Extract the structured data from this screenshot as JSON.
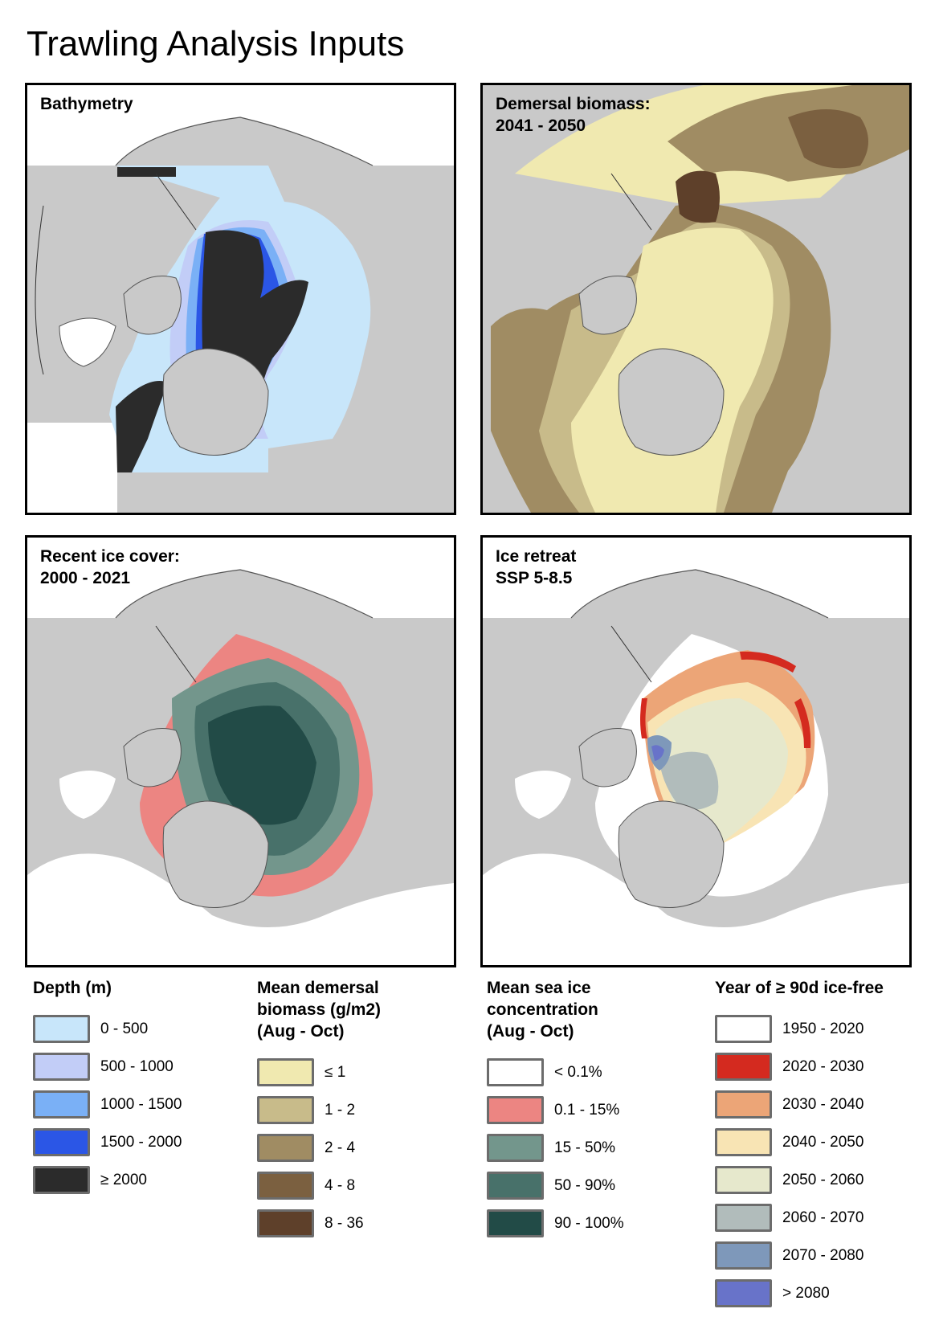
{
  "page": {
    "title": "Trawling Analysis Inputs"
  },
  "colors": {
    "land": "#c9c9c9",
    "coast": "#555555",
    "no_data": "#ffffff"
  },
  "maps": {
    "bathymetry": {
      "title": "Bathymetry"
    },
    "biomass": {
      "title": "Demersal biomass:\n2041 - 2050"
    },
    "ice_cover": {
      "title": "Recent ice cover:\n2000 - 2021"
    },
    "ice_retreat": {
      "title": "Ice retreat\nSSP 5-8.5"
    }
  },
  "legends": {
    "depth": {
      "title": "Depth (m)",
      "items": [
        {
          "label": "0 - 500",
          "color": "#c8e6fa"
        },
        {
          "label": "500 - 1000",
          "color": "#c2cdf7"
        },
        {
          "label": "1000 - 1500",
          "color": "#7ab0f6"
        },
        {
          "label": "1500 - 2000",
          "color": "#2b56e6"
        },
        {
          "label": "≥ 2000",
          "color": "#2b2b2b"
        }
      ]
    },
    "biomass": {
      "title": "Mean demersal\nbiomass (g/m2)\n(Aug - Oct)",
      "items": [
        {
          "label": "≤ 1",
          "color": "#f0e9b0"
        },
        {
          "label": "1 - 2",
          "color": "#c8bb8a"
        },
        {
          "label": "2 - 4",
          "color": "#a08c63"
        },
        {
          "label": "4 - 8",
          "color": "#7b6040"
        },
        {
          "label": "8 - 36",
          "color": "#5e402a"
        }
      ]
    },
    "ice": {
      "title": "Mean sea ice\nconcentration\n(Aug - Oct)",
      "items": [
        {
          "label": "< 0.1%",
          "color": "#ffffff"
        },
        {
          "label": "0.1 - 15%",
          "color": "#ec8582"
        },
        {
          "label": "15 - 50%",
          "color": "#73968c"
        },
        {
          "label": "50 - 90%",
          "color": "#48716a"
        },
        {
          "label": "90 - 100%",
          "color": "#224b47"
        }
      ]
    },
    "year": {
      "title": "Year of ≥ 90d ice-free",
      "items": [
        {
          "label": "1950 - 2020",
          "color": "#ffffff"
        },
        {
          "label": "2020 - 2030",
          "color": "#d42a1f"
        },
        {
          "label": "2030 - 2040",
          "color": "#eca577"
        },
        {
          "label": "2040 - 2050",
          "color": "#f8e4b4"
        },
        {
          "label": "2050 - 2060",
          "color": "#e6e8cc"
        },
        {
          "label": "2060 - 2070",
          "color": "#b1bcbb"
        },
        {
          "label": "2070 - 2080",
          "color": "#7e98ba"
        },
        {
          "label": "> 2080",
          "color": "#6873c9"
        }
      ]
    }
  }
}
